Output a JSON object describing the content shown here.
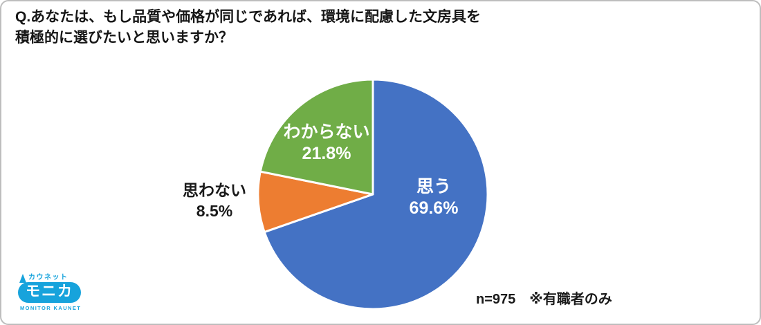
{
  "page": {
    "title_line1": "Q.あなたは、もし品質や価格が同じであれば、環境に配慮した文房具を",
    "title_line2": "積極的に選びたいと思いますか？",
    "annotation": "n=975　※有職者のみ"
  },
  "chart_data": {
    "type": "pie",
    "title": "Q.あなたは、もし品質や価格が同じであれば、環境に配慮した文房具を積極的に選びたいと思いますか？",
    "categories": [
      "思う",
      "思わない",
      "わからない"
    ],
    "values": [
      69.6,
      8.5,
      21.8
    ],
    "unit": "%",
    "colors": [
      "#4472C4",
      "#ED7D31",
      "#70AD47"
    ],
    "label_text_colors": [
      "#FFFFFF",
      "#1A1A1A",
      "#FFFFFF"
    ],
    "label_placement": [
      "inside",
      "outside",
      "inside"
    ],
    "start_angle_deg": 0,
    "direction": "clockwise",
    "slice_border_color": "#FFFFFF",
    "sample_note": "n=975　※有職者のみ",
    "legend": "none"
  },
  "logo": {
    "top_text": "カウネット",
    "main_text": "モニカ",
    "bottom_text": "MONITOR KAUNET",
    "color": "#17A3DC"
  }
}
